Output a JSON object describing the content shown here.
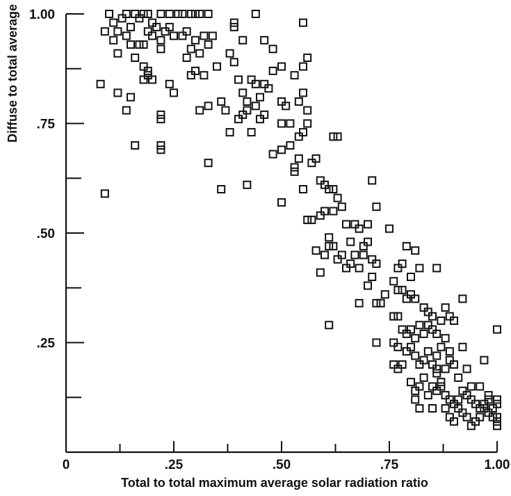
{
  "chart_data": {
    "type": "scatter",
    "title": "",
    "xlabel": "Total to total maximum average solar radiation ratio",
    "ylabel": "Diffuse to total average",
    "xlim": [
      0,
      1.0
    ],
    "ylim": [
      0,
      1.0
    ],
    "xticks": [
      {
        "value": 0,
        "label": "0"
      },
      {
        "value": 0.25,
        "label": ".25"
      },
      {
        "value": 0.5,
        "label": ".50"
      },
      {
        "value": 0.75,
        "label": ".75"
      },
      {
        "value": 1.0,
        "label": "1.00"
      }
    ],
    "yticks": [
      {
        "value": 0.25,
        "label": ".25"
      },
      {
        "value": 0.5,
        "label": ".50"
      },
      {
        "value": 0.75,
        "label": ".75"
      },
      {
        "value": 1.0,
        "label": "1.00"
      }
    ],
    "grid": false,
    "marker": "open-square",
    "points": [
      [
        0.1,
        1.0
      ],
      [
        0.11,
        0.98
      ],
      [
        0.12,
        0.96
      ],
      [
        0.13,
        0.99
      ],
      [
        0.14,
        1.0
      ],
      [
        0.15,
        0.97
      ],
      [
        0.16,
        1.0
      ],
      [
        0.17,
        0.99
      ],
      [
        0.18,
        1.0
      ],
      [
        0.19,
        1.0
      ],
      [
        0.2,
        0.98
      ],
      [
        0.22,
        1.0
      ],
      [
        0.24,
        1.0
      ],
      [
        0.26,
        1.0
      ],
      [
        0.27,
        1.0
      ],
      [
        0.29,
        1.0
      ],
      [
        0.3,
        1.0
      ],
      [
        0.31,
        1.0
      ],
      [
        0.33,
        1.0
      ],
      [
        0.44,
        1.0
      ],
      [
        0.09,
        0.96
      ],
      [
        0.11,
        0.94
      ],
      [
        0.12,
        0.91
      ],
      [
        0.14,
        0.95
      ],
      [
        0.15,
        0.93
      ],
      [
        0.16,
        0.9
      ],
      [
        0.17,
        0.93
      ],
      [
        0.18,
        0.93
      ],
      [
        0.19,
        0.96
      ],
      [
        0.2,
        0.95
      ],
      [
        0.21,
        0.97
      ],
      [
        0.22,
        0.92
      ],
      [
        0.23,
        0.96
      ],
      [
        0.25,
        0.95
      ],
      [
        0.27,
        0.95
      ],
      [
        0.28,
        0.96
      ],
      [
        0.29,
        0.92
      ],
      [
        0.3,
        0.94
      ],
      [
        0.31,
        0.91
      ],
      [
        0.33,
        0.93
      ],
      [
        0.34,
        0.95
      ],
      [
        0.22,
        0.94
      ],
      [
        0.24,
        0.97
      ],
      [
        0.32,
        0.95
      ],
      [
        0.08,
        0.84
      ],
      [
        0.12,
        0.82
      ],
      [
        0.14,
        0.78
      ],
      [
        0.15,
        0.81
      ],
      [
        0.18,
        0.85
      ],
      [
        0.19,
        0.86
      ],
      [
        0.2,
        0.85
      ],
      [
        0.18,
        0.88
      ],
      [
        0.19,
        0.87
      ],
      [
        0.22,
        0.76
      ],
      [
        0.22,
        0.77
      ],
      [
        0.24,
        0.84
      ],
      [
        0.25,
        0.82
      ],
      [
        0.28,
        0.9
      ],
      [
        0.29,
        0.86
      ],
      [
        0.3,
        0.87
      ],
      [
        0.32,
        0.86
      ],
      [
        0.31,
        0.78
      ],
      [
        0.33,
        0.79
      ],
      [
        0.35,
        0.88
      ],
      [
        0.36,
        0.8
      ],
      [
        0.37,
        0.78
      ],
      [
        0.38,
        0.91
      ],
      [
        0.39,
        0.89
      ],
      [
        0.4,
        0.85
      ],
      [
        0.41,
        0.82
      ],
      [
        0.42,
        0.8
      ],
      [
        0.43,
        0.85
      ],
      [
        0.44,
        0.84
      ],
      [
        0.45,
        0.81
      ],
      [
        0.46,
        0.84
      ],
      [
        0.47,
        0.83
      ],
      [
        0.48,
        0.87
      ],
      [
        0.5,
        0.8
      ],
      [
        0.51,
        0.79
      ],
      [
        0.52,
        0.75
      ],
      [
        0.39,
        0.97
      ],
      [
        0.39,
        0.98
      ],
      [
        0.41,
        0.94
      ],
      [
        0.46,
        0.94
      ],
      [
        0.48,
        0.92
      ],
      [
        0.55,
        0.98
      ],
      [
        0.56,
        0.9
      ],
      [
        0.55,
        0.88
      ],
      [
        0.5,
        0.88
      ],
      [
        0.53,
        0.86
      ],
      [
        0.54,
        0.8
      ],
      [
        0.55,
        0.82
      ],
      [
        0.56,
        0.78
      ],
      [
        0.38,
        0.73
      ],
      [
        0.4,
        0.76
      ],
      [
        0.41,
        0.77
      ],
      [
        0.42,
        0.78
      ],
      [
        0.43,
        0.73
      ],
      [
        0.44,
        0.79
      ],
      [
        0.45,
        0.76
      ],
      [
        0.46,
        0.77
      ],
      [
        0.48,
        0.68
      ],
      [
        0.5,
        0.69
      ],
      [
        0.5,
        0.75
      ],
      [
        0.54,
        0.72
      ],
      [
        0.55,
        0.73
      ],
      [
        0.56,
        0.75
      ],
      [
        0.52,
        0.7
      ],
      [
        0.16,
        0.7
      ],
      [
        0.22,
        0.7
      ],
      [
        0.22,
        0.69
      ],
      [
        0.09,
        0.59
      ],
      [
        0.33,
        0.66
      ],
      [
        0.36,
        0.6
      ],
      [
        0.42,
        0.61
      ],
      [
        0.5,
        0.57
      ],
      [
        0.53,
        0.65
      ],
      [
        0.53,
        0.64
      ],
      [
        0.54,
        0.67
      ],
      [
        0.55,
        0.6
      ],
      [
        0.56,
        0.53
      ],
      [
        0.57,
        0.53
      ],
      [
        0.57,
        0.66
      ],
      [
        0.58,
        0.67
      ],
      [
        0.59,
        0.62
      ],
      [
        0.6,
        0.61
      ],
      [
        0.61,
        0.6
      ],
      [
        0.62,
        0.72
      ],
      [
        0.63,
        0.72
      ],
      [
        0.62,
        0.6
      ],
      [
        0.59,
        0.54
      ],
      [
        0.6,
        0.55
      ],
      [
        0.61,
        0.49
      ],
      [
        0.62,
        0.55
      ],
      [
        0.63,
        0.58
      ],
      [
        0.64,
        0.56
      ],
      [
        0.65,
        0.52
      ],
      [
        0.66,
        0.48
      ],
      [
        0.67,
        0.52
      ],
      [
        0.68,
        0.51
      ],
      [
        0.69,
        0.47
      ],
      [
        0.7,
        0.52
      ],
      [
        0.71,
        0.62
      ],
      [
        0.72,
        0.56
      ],
      [
        0.58,
        0.46
      ],
      [
        0.59,
        0.41
      ],
      [
        0.6,
        0.45
      ],
      [
        0.61,
        0.47
      ],
      [
        0.62,
        0.47
      ],
      [
        0.63,
        0.44
      ],
      [
        0.64,
        0.45
      ],
      [
        0.65,
        0.42
      ],
      [
        0.66,
        0.43
      ],
      [
        0.67,
        0.45
      ],
      [
        0.68,
        0.42
      ],
      [
        0.69,
        0.45
      ],
      [
        0.7,
        0.48
      ],
      [
        0.71,
        0.44
      ],
      [
        0.72,
        0.43
      ],
      [
        0.68,
        0.34
      ],
      [
        0.7,
        0.38
      ],
      [
        0.71,
        0.4
      ],
      [
        0.73,
        0.34
      ],
      [
        0.74,
        0.36
      ],
      [
        0.72,
        0.34
      ],
      [
        0.61,
        0.29
      ],
      [
        0.72,
        0.25
      ],
      [
        0.75,
        0.51
      ],
      [
        0.77,
        0.42
      ],
      [
        0.78,
        0.43
      ],
      [
        0.79,
        0.47
      ],
      [
        0.8,
        0.4
      ],
      [
        0.81,
        0.46
      ],
      [
        0.82,
        0.42
      ],
      [
        0.76,
        0.39
      ],
      [
        0.77,
        0.37
      ],
      [
        0.78,
        0.37
      ],
      [
        0.79,
        0.35
      ],
      [
        0.8,
        0.36
      ],
      [
        0.81,
        0.35
      ],
      [
        0.83,
        0.33
      ],
      [
        0.84,
        0.32
      ],
      [
        0.85,
        0.31
      ],
      [
        0.86,
        0.42
      ],
      [
        0.76,
        0.31
      ],
      [
        0.77,
        0.31
      ],
      [
        0.78,
        0.28
      ],
      [
        0.79,
        0.27
      ],
      [
        0.8,
        0.28
      ],
      [
        0.81,
        0.26
      ],
      [
        0.82,
        0.29
      ],
      [
        0.83,
        0.27
      ],
      [
        0.84,
        0.29
      ],
      [
        0.85,
        0.28
      ],
      [
        0.86,
        0.27
      ],
      [
        0.87,
        0.3
      ],
      [
        0.88,
        0.33
      ],
      [
        0.89,
        0.31
      ],
      [
        0.9,
        0.3
      ],
      [
        0.76,
        0.25
      ],
      [
        0.77,
        0.24
      ],
      [
        0.78,
        0.2
      ],
      [
        0.79,
        0.23
      ],
      [
        0.8,
        0.24
      ],
      [
        0.81,
        0.22
      ],
      [
        0.82,
        0.2
      ],
      [
        0.83,
        0.21
      ],
      [
        0.84,
        0.23
      ],
      [
        0.85,
        0.2
      ],
      [
        0.86,
        0.22
      ],
      [
        0.87,
        0.24
      ],
      [
        0.88,
        0.19
      ],
      [
        0.89,
        0.21
      ],
      [
        0.9,
        0.2
      ],
      [
        0.76,
        0.2
      ],
      [
        0.77,
        0.19
      ],
      [
        0.8,
        0.16
      ],
      [
        0.81,
        0.14
      ],
      [
        0.82,
        0.15
      ],
      [
        0.83,
        0.17
      ],
      [
        0.84,
        0.13
      ],
      [
        0.85,
        0.15
      ],
      [
        0.86,
        0.14
      ],
      [
        0.87,
        0.16
      ],
      [
        0.88,
        0.13
      ],
      [
        0.89,
        0.12
      ],
      [
        0.9,
        0.11
      ],
      [
        0.91,
        0.12
      ],
      [
        0.92,
        0.14
      ],
      [
        0.93,
        0.13
      ],
      [
        0.94,
        0.12
      ],
      [
        0.95,
        0.11
      ],
      [
        0.96,
        0.1
      ],
      [
        0.97,
        0.11
      ],
      [
        0.98,
        0.09
      ],
      [
        0.99,
        0.1
      ],
      [
        0.81,
        0.12
      ],
      [
        0.82,
        0.1
      ],
      [
        0.85,
        0.1
      ],
      [
        0.86,
        0.18
      ],
      [
        0.87,
        0.15
      ],
      [
        0.88,
        0.1
      ],
      [
        0.89,
        0.08
      ],
      [
        0.9,
        0.07
      ],
      [
        0.91,
        0.1
      ],
      [
        0.92,
        0.09
      ],
      [
        0.93,
        0.08
      ],
      [
        0.94,
        0.06
      ],
      [
        0.95,
        0.07
      ],
      [
        0.96,
        0.08
      ],
      [
        0.97,
        0.1
      ],
      [
        0.98,
        0.12
      ],
      [
        0.99,
        0.08
      ],
      [
        1.0,
        0.07
      ],
      [
        1.0,
        0.06
      ],
      [
        1.0,
        0.08
      ],
      [
        1.0,
        0.11
      ],
      [
        1.0,
        0.12
      ],
      [
        1.0,
        0.28
      ],
      [
        0.92,
        0.35
      ],
      [
        0.92,
        0.24
      ],
      [
        0.93,
        0.19
      ],
      [
        0.94,
        0.15
      ],
      [
        0.96,
        0.15
      ],
      [
        0.97,
        0.21
      ],
      [
        0.98,
        0.13
      ],
      [
        0.88,
        0.26
      ],
      [
        0.89,
        0.23
      ],
      [
        0.91,
        0.17
      ],
      [
        0.86,
        0.19
      ]
    ]
  }
}
